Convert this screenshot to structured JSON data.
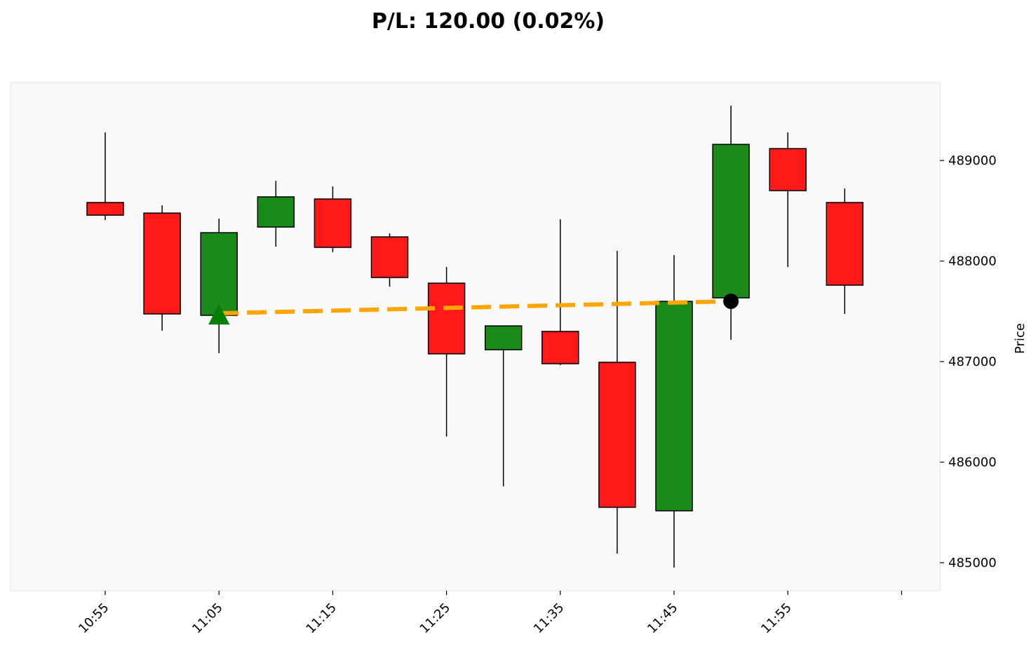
{
  "chart_data": {
    "type": "candlestick",
    "title": "P/L: 120.00 (0.02%)",
    "ylabel": "Price",
    "xlabel": "",
    "ylim": [
      484750,
      489800
    ],
    "yticks": [
      485000,
      486000,
      487000,
      488000,
      489000
    ],
    "ytick_labels": [
      "485000",
      "486000",
      "487000",
      "488000",
      "489000"
    ],
    "xtick_labels": [
      "10:55",
      "11:05",
      "11:15",
      "11:25",
      "11:35",
      "11:45",
      "11:55",
      ""
    ],
    "xtick_index": [
      0,
      2,
      4,
      6,
      8,
      10,
      12,
      14
    ],
    "colors": {
      "up": "#1a8a1a",
      "down": "#ff1a1a",
      "trade_line": "#ffa500",
      "entry": "#008000",
      "exit": "#000000",
      "plot_bg": "#f9f9f9"
    },
    "candles": [
      {
        "time": "10:55",
        "open": 488582,
        "high": 489279,
        "low": 488408,
        "close": 488456
      },
      {
        "time": "11:00",
        "open": 488477,
        "high": 488554,
        "low": 487307,
        "close": 487474
      },
      {
        "time": "11:05",
        "open": 487460,
        "high": 488422,
        "low": 487084,
        "close": 488282
      },
      {
        "time": "11:10",
        "open": 488338,
        "high": 488798,
        "low": 488143,
        "close": 488638
      },
      {
        "time": "11:15",
        "open": 488617,
        "high": 488742,
        "low": 488087,
        "close": 488136
      },
      {
        "time": "11:20",
        "open": 488240,
        "high": 488275,
        "low": 487746,
        "close": 487836
      },
      {
        "time": "11:25",
        "open": 487780,
        "high": 487941,
        "low": 486254,
        "close": 487077
      },
      {
        "time": "11:30",
        "open": 487118,
        "high": 487355,
        "low": 485760,
        "close": 487355
      },
      {
        "time": "11:35",
        "open": 487300,
        "high": 488415,
        "low": 486965,
        "close": 486979
      },
      {
        "time": "11:40",
        "open": 486993,
        "high": 488101,
        "low": 485091,
        "close": 485551
      },
      {
        "time": "11:45",
        "open": 485516,
        "high": 488059,
        "low": 484951,
        "close": 487599
      },
      {
        "time": "11:50",
        "open": 487634,
        "high": 489544,
        "low": 487216,
        "close": 489160
      },
      {
        "time": "11:55",
        "open": 489118,
        "high": 489279,
        "low": 487941,
        "close": 488700
      },
      {
        "time": "12:00",
        "open": 488582,
        "high": 488721,
        "low": 487474,
        "close": 487760
      }
    ],
    "trade": {
      "entry_index": 2,
      "entry_price": 487480,
      "exit_index": 11,
      "exit_price": 487600,
      "pl": 120.0,
      "pl_pct": 0.02
    }
  }
}
